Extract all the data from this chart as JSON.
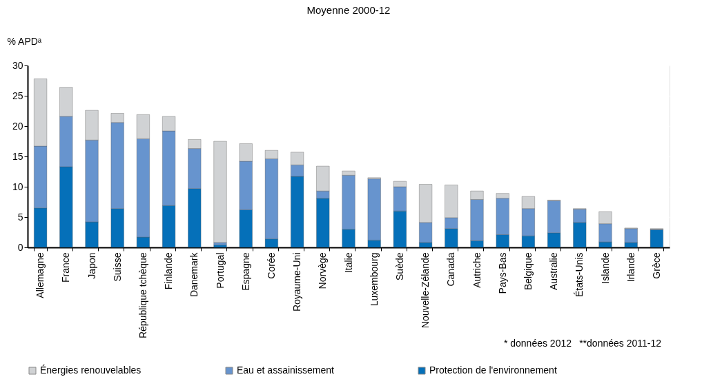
{
  "chart_data": {
    "type": "bar",
    "stacked": true,
    "title": "Moyenne 2000-12",
    "ylabel": "% APDᵃ",
    "categories": [
      "Allemagne",
      "France",
      "Japon",
      "Suisse",
      "République tchèque",
      "Finlande",
      "Danemark",
      "Portugal",
      "Espagne",
      "Corée",
      "Royaume-Uni",
      "Norvège",
      "Italie",
      "Luxembourg",
      "Suède",
      "Nouvelle-Zélande",
      "Canada",
      "Autriche",
      "Pays-Bas",
      "Belgique",
      "Australie",
      "États-Unis",
      "Islande",
      "Irlande",
      "Grèce"
    ],
    "series": [
      {
        "name": "Protection de l'environnement",
        "color": "#0570b9",
        "values": [
          6.5,
          13.3,
          4.2,
          6.4,
          1.7,
          6.9,
          9.7,
          0.4,
          6.2,
          1.4,
          11.7,
          8.1,
          3.0,
          1.2,
          6.0,
          0.8,
          3.1,
          1.1,
          2.1,
          1.9,
          2.4,
          4.1,
          0.9,
          0.8,
          2.9
        ]
      },
      {
        "name": "Eau et assainissement",
        "color": "#6794ce",
        "values": [
          10.2,
          8.3,
          13.5,
          14.2,
          16.2,
          12.3,
          6.6,
          0.4,
          8.0,
          13.2,
          1.9,
          1.2,
          8.9,
          10.1,
          4.0,
          3.3,
          1.8,
          6.8,
          6.0,
          4.5,
          5.3,
          2.2,
          3.0,
          2.3,
          0.1
        ]
      },
      {
        "name": "Énergies renouvelables",
        "color": "#d0d2d4",
        "values": [
          11.1,
          4.8,
          4.9,
          1.5,
          4.0,
          2.4,
          1.5,
          16.7,
          2.9,
          1.4,
          2.1,
          4.1,
          0.7,
          0.2,
          0.9,
          6.3,
          5.4,
          1.4,
          0.8,
          2.0,
          0.1,
          0.1,
          2.0,
          0.1,
          0.1
        ]
      }
    ],
    "ylim": [
      0,
      30
    ],
    "yticks": [
      0,
      5,
      10,
      15,
      20,
      25,
      30
    ],
    "grid": true,
    "legend": "bottom",
    "annotations": [
      "* données 2012",
      "**données 2011-12"
    ]
  }
}
